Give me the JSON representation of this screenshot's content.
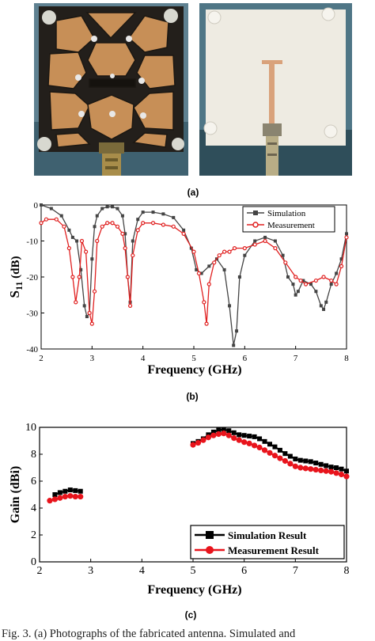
{
  "panels": {
    "a_label": "(a)",
    "b_label": "(b)",
    "c_label": "(c)"
  },
  "photos": {
    "left": {
      "description_icon": "fabricated-antenna-top-photo-icon",
      "colors": {
        "board": "#2a2620",
        "copper": "#c9925a",
        "bg": "#5a7d8c"
      }
    },
    "right": {
      "description_icon": "fabricated-antenna-bottom-photo-icon",
      "colors": {
        "board": "#efece3",
        "copper": "#d9a883",
        "bg": "#4f7686"
      }
    }
  },
  "caption": "Fig. 3. (a) Photographs of the fabricated antenna. Simulated and",
  "chart_data": [
    {
      "type": "line",
      "panel": "b",
      "xlabel": "Frequency (GHz)",
      "ylabel_main": "S",
      "ylabel_sub": "11",
      "ylabel_unit": " (dB)",
      "xlim": [
        2,
        8
      ],
      "ylim": [
        -40,
        0
      ],
      "xticks": [
        2,
        3,
        4,
        5,
        6,
        7,
        8
      ],
      "yticks": [
        0,
        -10,
        -20,
        -30,
        -40
      ],
      "legend_position": "top-right",
      "series": [
        {
          "name": "Simulation",
          "color": "#444444",
          "marker": "square",
          "x": [
            2.0,
            2.2,
            2.4,
            2.55,
            2.62,
            2.7,
            2.78,
            2.85,
            2.9,
            2.95,
            3.0,
            3.05,
            3.1,
            3.2,
            3.3,
            3.4,
            3.5,
            3.6,
            3.65,
            3.7,
            3.75,
            3.8,
            3.9,
            4.0,
            4.2,
            4.4,
            4.6,
            4.8,
            4.95,
            5.05,
            5.15,
            5.3,
            5.45,
            5.6,
            5.7,
            5.78,
            5.84,
            5.9,
            6.0,
            6.2,
            6.4,
            6.6,
            6.75,
            6.85,
            6.95,
            7.0,
            7.05,
            7.15,
            7.3,
            7.4,
            7.5,
            7.55,
            7.6,
            7.7,
            7.8,
            7.9,
            8.0
          ],
          "y": [
            0,
            -1,
            -3,
            -7,
            -9,
            -10,
            -18,
            -28,
            -31,
            -30,
            -15,
            -6,
            -3,
            -1,
            -0.5,
            -0.5,
            -1,
            -3,
            -8,
            -20,
            -27,
            -10,
            -4,
            -2,
            -2,
            -2.5,
            -3.5,
            -7,
            -12,
            -18,
            -19,
            -17,
            -15,
            -18,
            -28,
            -39,
            -35,
            -20,
            -14,
            -10,
            -9,
            -10,
            -14,
            -20,
            -22,
            -25,
            -24,
            -21,
            -22,
            -24,
            -28,
            -29,
            -27,
            -22,
            -19,
            -15,
            -8
          ]
        },
        {
          "name": "Measurement",
          "color": "#e02020",
          "marker": "circle",
          "x": [
            2.0,
            2.1,
            2.3,
            2.45,
            2.55,
            2.62,
            2.68,
            2.75,
            2.8,
            2.88,
            2.95,
            3.0,
            3.05,
            3.1,
            3.2,
            3.3,
            3.4,
            3.5,
            3.6,
            3.65,
            3.7,
            3.75,
            3.8,
            3.9,
            4.0,
            4.2,
            4.4,
            4.6,
            4.8,
            5.0,
            5.1,
            5.2,
            5.25,
            5.3,
            5.4,
            5.5,
            5.6,
            5.7,
            5.8,
            6.0,
            6.2,
            6.4,
            6.6,
            6.8,
            7.0,
            7.1,
            7.2,
            7.4,
            7.55,
            7.7,
            7.8,
            7.9,
            8.0
          ],
          "y": [
            -5,
            -4,
            -4,
            -6,
            -12,
            -20,
            -27,
            -20,
            -10,
            -13,
            -30,
            -33,
            -24,
            -10,
            -6,
            -5,
            -5,
            -6,
            -8,
            -12,
            -20,
            -28,
            -14,
            -7,
            -5,
            -5,
            -5.5,
            -6,
            -8,
            -13,
            -19,
            -27,
            -33,
            -22,
            -16,
            -14,
            -13,
            -13,
            -12,
            -12,
            -11,
            -10,
            -12,
            -16,
            -20,
            -21,
            -22,
            -21,
            -20,
            -21,
            -22,
            -17,
            -9
          ]
        }
      ]
    },
    {
      "type": "line",
      "panel": "c",
      "xlabel": "Frequency (GHz)",
      "ylabel": "Gain (dBi)",
      "xlim": [
        2,
        8
      ],
      "ylim": [
        0,
        10
      ],
      "xticks": [
        2,
        3,
        4,
        5,
        6,
        7,
        8
      ],
      "yticks": [
        0,
        2,
        4,
        6,
        8,
        10
      ],
      "legend_position": "bottom-right",
      "series": [
        {
          "name": "Simulation Result",
          "color": "#000000",
          "marker": "square",
          "segments": [
            {
              "x": [
                2.3,
                2.4,
                2.5,
                2.6,
                2.7,
                2.8
              ],
              "y": [
                5.0,
                5.15,
                5.25,
                5.35,
                5.3,
                5.25
              ]
            },
            {
              "x": [
                5.0,
                5.1,
                5.2,
                5.3,
                5.4,
                5.5,
                5.6,
                5.7,
                5.8,
                5.9,
                6.0,
                6.1,
                6.2,
                6.3,
                6.4,
                6.5,
                6.6,
                6.7,
                6.8,
                6.9,
                7.0,
                7.1,
                7.2,
                7.3,
                7.4,
                7.5,
                7.6,
                7.7,
                7.8,
                7.9,
                8.0
              ],
              "y": [
                8.8,
                8.95,
                9.15,
                9.45,
                9.65,
                9.8,
                9.85,
                9.75,
                9.6,
                9.45,
                9.4,
                9.35,
                9.3,
                9.15,
                8.95,
                8.75,
                8.55,
                8.3,
                8.05,
                7.85,
                7.65,
                7.55,
                7.5,
                7.45,
                7.35,
                7.25,
                7.15,
                7.05,
                7.0,
                6.9,
                6.75
              ]
            }
          ]
        },
        {
          "name": "Measurement Result",
          "color": "#e8141c",
          "marker": "circle",
          "segments": [
            {
              "x": [
                2.2,
                2.3,
                2.4,
                2.5,
                2.6,
                2.7,
                2.8
              ],
              "y": [
                4.55,
                4.65,
                4.75,
                4.85,
                4.9,
                4.85,
                4.85
              ]
            },
            {
              "x": [
                5.0,
                5.1,
                5.2,
                5.3,
                5.4,
                5.5,
                5.6,
                5.7,
                5.8,
                5.9,
                6.0,
                6.1,
                6.2,
                6.3,
                6.4,
                6.5,
                6.6,
                6.7,
                6.8,
                6.9,
                7.0,
                7.1,
                7.2,
                7.3,
                7.4,
                7.5,
                7.6,
                7.7,
                7.8,
                7.9,
                8.0
              ],
              "y": [
                8.7,
                8.85,
                9.05,
                9.25,
                9.4,
                9.5,
                9.55,
                9.4,
                9.2,
                9.05,
                8.9,
                8.8,
                8.65,
                8.5,
                8.3,
                8.1,
                7.9,
                7.7,
                7.5,
                7.3,
                7.1,
                7.0,
                6.95,
                6.9,
                6.85,
                6.8,
                6.75,
                6.7,
                6.6,
                6.5,
                6.35
              ]
            }
          ]
        }
      ]
    }
  ]
}
